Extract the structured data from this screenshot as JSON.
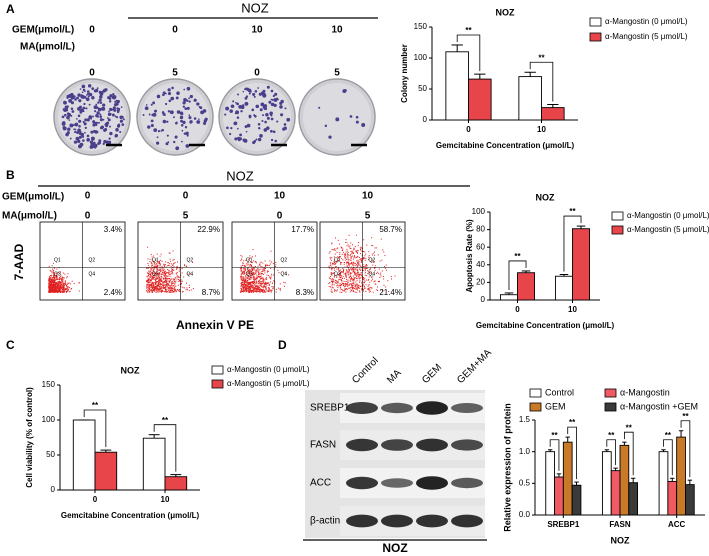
{
  "panel_labels": [
    "A",
    "B",
    "C",
    "D"
  ],
  "colony_assay": {
    "title": "NOZ",
    "gem_label": "GEM(μmol/L)",
    "ma_label": "MA(μmol/L)",
    "gem": [
      0,
      0,
      10,
      10
    ],
    "ma": [
      0,
      5,
      0,
      5
    ]
  },
  "flow_cytometry": {
    "title": "NOZ",
    "gem_label": "GEM(μmol/L)",
    "ma_label": "MA(μmol/L)",
    "gem": [
      0,
      0,
      10,
      10
    ],
    "ma": [
      0,
      5,
      0,
      5
    ],
    "y_label": "7-AAD",
    "x_label": "Annexin V PE",
    "quadrant_labels": [
      "Q1",
      "Q2",
      "Q3",
      "Q4"
    ],
    "plots": [
      {
        "upper_right": "3.4%",
        "lower_right": "2.4%"
      },
      {
        "upper_right": "22.9%",
        "lower_right": "8.7%"
      },
      {
        "upper_right": "17.7%",
        "lower_right": "8.3%"
      },
      {
        "upper_right": "58.7%",
        "lower_right": "21.4%"
      }
    ]
  },
  "western_blot": {
    "lanes": [
      "Control",
      "MA",
      "GEM",
      "GEM+MA"
    ],
    "proteins": [
      "SREBP1",
      "FASN",
      "ACC",
      "β-actin"
    ],
    "cell_line": "NOZ"
  },
  "chart_data": [
    {
      "type": "bar",
      "title": "NOZ",
      "ylabel": "Colony number",
      "xlabel": "Gemcitabine Concentration (μmol/L)",
      "categories": [
        "0",
        "10"
      ],
      "series": [
        {
          "name": "α-Mangostin (0 μmol/L)",
          "color": "#ffffff",
          "values": [
            110,
            70
          ],
          "errors": [
            11,
            7
          ]
        },
        {
          "name": "α-Mangostin (5 μmol/L)",
          "color": "#e8454a",
          "values": [
            66,
            20
          ],
          "errors": [
            8,
            5
          ]
        }
      ],
      "ylim": [
        0,
        150
      ],
      "yticks": [
        0,
        50,
        100,
        150
      ],
      "annotations": [
        "**",
        "**"
      ]
    },
    {
      "type": "bar",
      "title": "NOZ",
      "ylabel": "Apoptosis Rate (%)",
      "xlabel": "Gemcitabine Concentration (μmol/L)",
      "categories": [
        "0",
        "10"
      ],
      "series": [
        {
          "name": "α-Mangostin (0 μmol/L)",
          "color": "#ffffff",
          "values": [
            6,
            27
          ],
          "errors": [
            2,
            2
          ]
        },
        {
          "name": "α-Mangostin (5 μmol/L)",
          "color": "#e8454a",
          "values": [
            31,
            81
          ],
          "errors": [
            2,
            3
          ]
        }
      ],
      "ylim": [
        0,
        100
      ],
      "yticks": [
        0,
        20,
        40,
        60,
        80,
        100
      ],
      "annotations": [
        "**",
        "**"
      ]
    },
    {
      "type": "bar",
      "title": "NOZ",
      "ylabel": "Cell viability (% of control)",
      "xlabel": "Gemcitabine Concentration (μmol/L)",
      "categories": [
        "0",
        "10"
      ],
      "series": [
        {
          "name": "α-Mangostin (0 μmol/L)",
          "color": "#ffffff",
          "values": [
            100,
            74
          ],
          "errors": [
            0,
            5
          ]
        },
        {
          "name": "α-Mangostin (5 μmol/L)",
          "color": "#e8454a",
          "values": [
            54,
            19
          ],
          "errors": [
            3,
            3
          ]
        }
      ],
      "ylim": [
        0,
        150
      ],
      "yticks": [
        0,
        50,
        100,
        150
      ],
      "annotations": [
        "**",
        "**"
      ]
    },
    {
      "type": "bar",
      "ylabel": "Relative expression of protein",
      "xlabel": "NOZ",
      "categories": [
        "SREBP1",
        "FASN",
        "ACC"
      ],
      "series": [
        {
          "name": "Control",
          "color": "#ffffff",
          "values": [
            1,
            1,
            1
          ],
          "errors": [
            0.03,
            0.03,
            0.03
          ]
        },
        {
          "name": "α-Mangostin",
          "color": "#ef5a63",
          "values": [
            0.6,
            0.7,
            0.53
          ],
          "errors": [
            0.05,
            0.04,
            0.05
          ]
        },
        {
          "name": "GEM",
          "color": "#c97a27",
          "values": [
            1.15,
            1.1,
            1.23
          ],
          "errors": [
            0.08,
            0.05,
            0.1
          ]
        },
        {
          "name": "α-Mangostin +GEM",
          "color": "#3a3a3a",
          "values": [
            0.47,
            0.51,
            0.48
          ],
          "errors": [
            0.05,
            0.07,
            0.07
          ]
        }
      ],
      "ylim": [
        0,
        1.5
      ],
      "yticks": [
        {
          "value": 0,
          "label": "0.0"
        },
        0.5,
        {
          "value": 1,
          "label": "1.0"
        },
        1.5
      ],
      "annotations": [
        "**",
        "**",
        "**",
        "**",
        "**",
        "**"
      ]
    }
  ]
}
